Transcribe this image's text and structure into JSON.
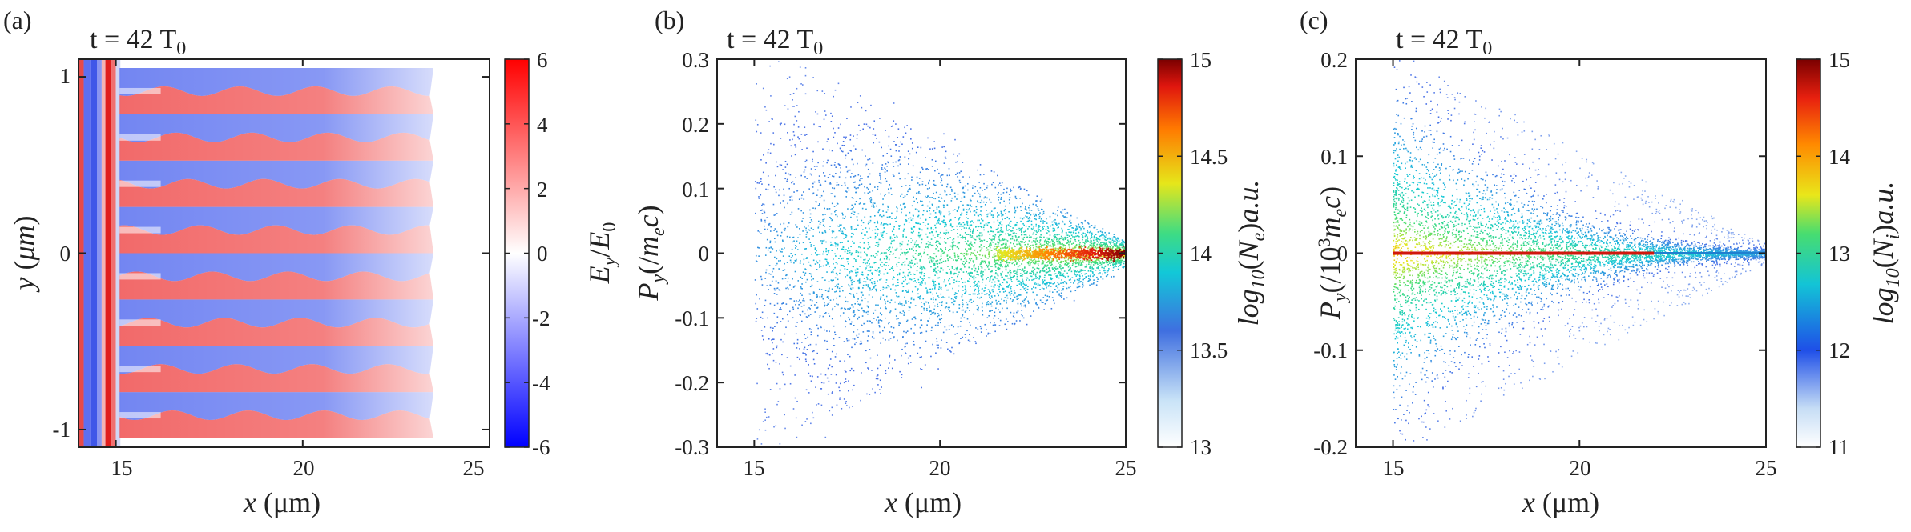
{
  "figure": {
    "panels": [
      {
        "label": "(a)",
        "time": "t = 42 T",
        "time_sub": "0",
        "xlabel": "x (μm)",
        "ylabel": "y (μm)",
        "cbar_label": "E_y/E_0",
        "cbar_ticks": [
          "6",
          "4",
          "2",
          "0",
          "-2",
          "-4",
          "-6"
        ],
        "xticks": [
          "15",
          "20",
          "25"
        ],
        "yticks": [
          "1",
          "0",
          "-1"
        ]
      },
      {
        "label": "(b)",
        "time": "t = 42 T",
        "time_sub": "0",
        "xlabel": "x (μm)",
        "ylabel": "P_y(/m_e c)",
        "cbar_label": "log_10(N_e)a.u.",
        "cbar_ticks": [
          "15",
          "14.5",
          "14",
          "13.5",
          "13"
        ],
        "xticks": [
          "15",
          "20",
          "25"
        ],
        "yticks": [
          "0.3",
          "0.2",
          "0.1",
          "0",
          "-0.1",
          "-0.2",
          "-0.3"
        ]
      },
      {
        "label": "(c)",
        "time": "t = 42 T",
        "time_sub": "0",
        "xlabel": "x (μm)",
        "ylabel": "P_y(/10^3 m_e c)",
        "cbar_label": "log_10(N_i)a.u.",
        "cbar_ticks": [
          "15",
          "14",
          "13",
          "12",
          "11"
        ],
        "xticks": [
          "15",
          "20",
          "25"
        ],
        "yticks": [
          "0.2",
          "0.1",
          "0",
          "-0.1",
          "-0.2"
        ]
      }
    ]
  },
  "chart_data": [
    {
      "type": "heatmap",
      "panel": "(a)",
      "title": "t = 42 T0",
      "xlabel": "x (μm)",
      "ylabel": "y (μm)",
      "xlim": [
        14,
        25
      ],
      "ylim": [
        -1.1,
        1.1
      ],
      "colorbar": {
        "label": "Ey/E0",
        "range": [
          -6,
          6
        ],
        "ticks": [
          6,
          4,
          2,
          0,
          -2,
          -4,
          -6
        ],
        "colormap": "blue-white-red"
      },
      "features": {
        "laser_front_x": [
          14.1,
          15.1
        ],
        "filament_count": 8,
        "decay_end_x": 23.5
      }
    },
    {
      "type": "heatmap",
      "panel": "(b)",
      "title": "t = 42 T0",
      "xlabel": "x (μm)",
      "ylabel": "Py(/mec)",
      "xlim": [
        14,
        25
      ],
      "ylim": [
        -0.3,
        0.3
      ],
      "colorbar": {
        "label": "log10(Ne)a.u.",
        "range": [
          13,
          15
        ],
        "ticks": [
          15,
          14.5,
          14,
          13.5,
          13
        ],
        "colormap": "jet"
      },
      "distribution": {
        "x_start": 15,
        "x_end": 25,
        "spread_at_x15": 0.3,
        "peak_x": 24.5
      }
    },
    {
      "type": "heatmap",
      "panel": "(c)",
      "title": "t = 42 T0",
      "xlabel": "x (μm)",
      "ylabel": "Py(/10^3 mec)",
      "xlim": [
        14,
        25
      ],
      "ylim": [
        -0.2,
        0.2
      ],
      "colorbar": {
        "label": "log10(Ni)a.u.",
        "range": [
          11,
          15
        ],
        "ticks": [
          15,
          14,
          13,
          12,
          11
        ],
        "colormap": "jet"
      },
      "distribution": {
        "x_start": 15,
        "x_end": 25,
        "spread_at_x15": 0.2,
        "core_line_x_end": 22
      }
    }
  ]
}
